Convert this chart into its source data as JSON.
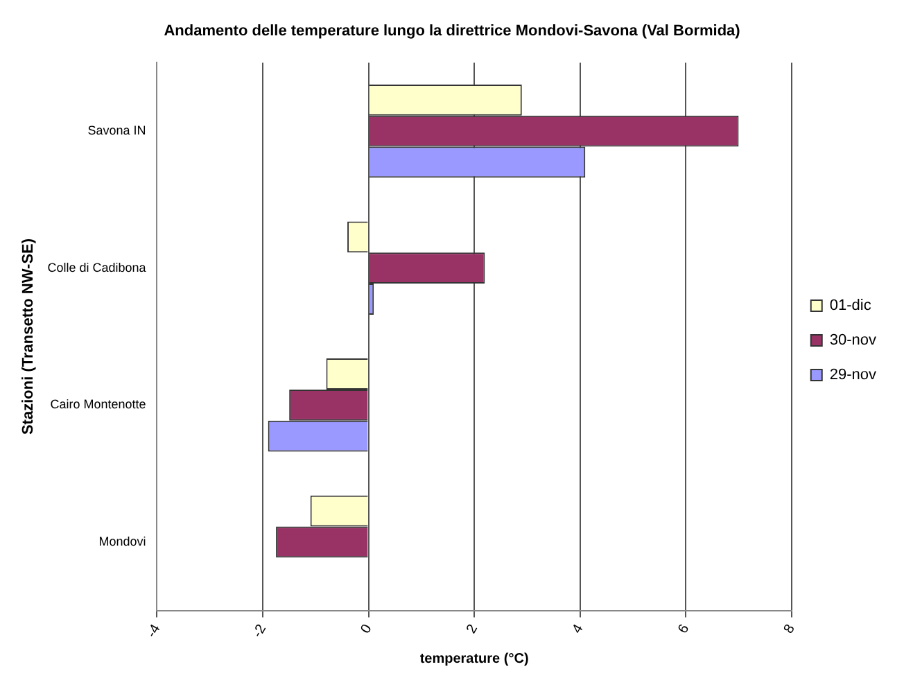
{
  "chart_data": {
    "type": "bar",
    "orientation": "horizontal",
    "title": "Andamento delle temperature lungo la direttrice Mondovi-Savona (Val Bormida)",
    "xlabel": "temperature (°C)",
    "ylabel": "Stazioni (Transetto NW-SE)",
    "categories": [
      "Savona IN",
      "Colle di Cadibona",
      "Cairo Montenotte",
      "Mondovi"
    ],
    "series": [
      {
        "name": "01-dic",
        "color": "#ffffcc",
        "values": [
          2.9,
          -0.4,
          -0.8,
          -1.1
        ]
      },
      {
        "name": "30-nov",
        "color": "#993366",
        "values": [
          7.0,
          2.2,
          -1.5,
          -1.75
        ]
      },
      {
        "name": "29-nov",
        "color": "#9999ff",
        "values": [
          4.1,
          0.1,
          -1.9,
          null
        ]
      }
    ],
    "xlim": [
      -4,
      8
    ],
    "xticks": [
      -4,
      -2,
      0,
      2,
      4,
      6,
      8
    ],
    "grid": "x",
    "legend": "right"
  }
}
